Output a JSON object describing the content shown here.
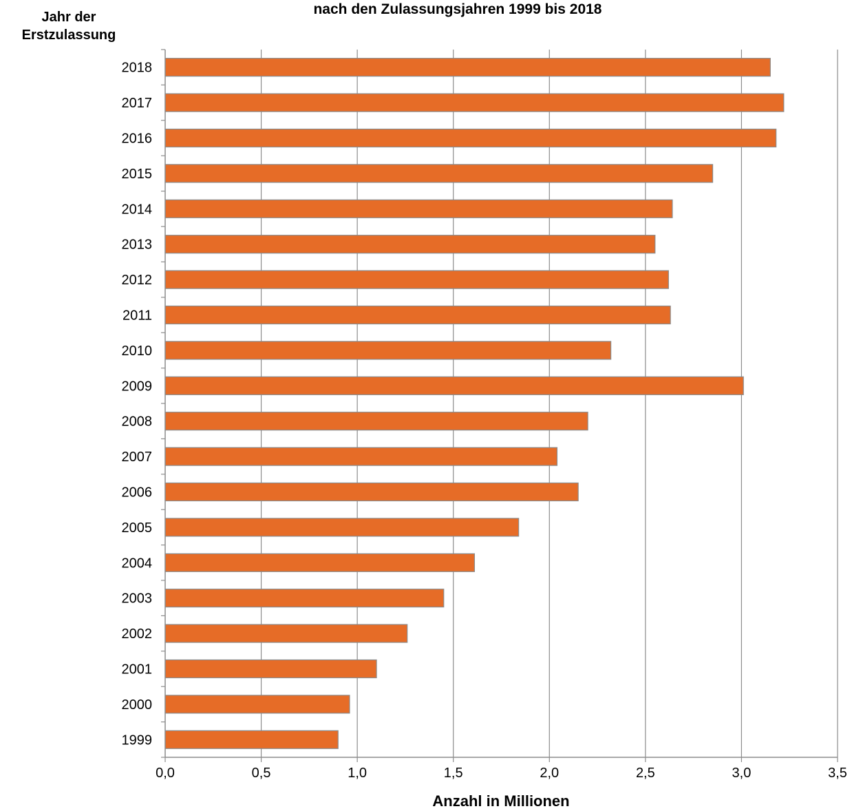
{
  "chart_data": {
    "type": "bar",
    "orientation": "horizontal",
    "title": "nach den Zulassungsjahren 1999 bis 2018",
    "ylabel_lines": [
      "Jahr der",
      "Erstzulassung"
    ],
    "xlabel": "Anzahl in Millionen",
    "xlim": [
      0,
      3.5
    ],
    "xticks": [
      "0,0",
      "0,5",
      "1,0",
      "1,5",
      "2,0",
      "2,5",
      "3,0",
      "3,5"
    ],
    "grid": "vertical",
    "categories": [
      "2018",
      "2017",
      "2016",
      "2015",
      "2014",
      "2013",
      "2012",
      "2011",
      "2010",
      "2009",
      "2008",
      "2007",
      "2006",
      "2005",
      "2004",
      "2003",
      "2002",
      "2001",
      "2000",
      "1999"
    ],
    "values": [
      3.15,
      3.22,
      3.18,
      2.85,
      2.64,
      2.55,
      2.62,
      2.63,
      2.32,
      3.01,
      2.2,
      2.04,
      2.15,
      1.84,
      1.61,
      1.45,
      1.26,
      1.1,
      0.96,
      0.9
    ],
    "colors": {
      "bar_fill": "#e66c27",
      "bar_stroke": "#8a8a8a",
      "grid": "#8c8c8c",
      "axis": "#8c8c8c"
    }
  }
}
